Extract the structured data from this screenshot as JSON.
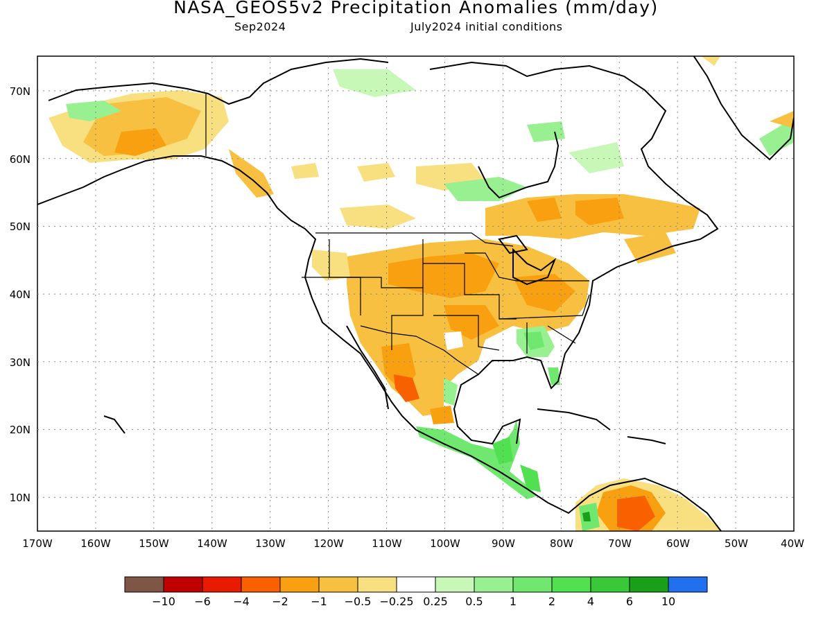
{
  "title": "NASA_GEOS5v2 Precipitation Anomalies (mm/day)",
  "subtitle_left": "Sep2024",
  "subtitle_right": "July2024 initial conditions",
  "lat_labels": [
    "70N",
    "60N",
    "50N",
    "40N",
    "30N",
    "20N",
    "10N"
  ],
  "lon_labels": [
    "170W",
    "160W",
    "150W",
    "140W",
    "130W",
    "120W",
    "110W",
    "100W",
    "90W",
    "80W",
    "70W",
    "60W",
    "50W",
    "40W"
  ],
  "colorbar": {
    "colors": [
      "#7f5545",
      "#c00000",
      "#e81a00",
      "#f86000",
      "#f8a010",
      "#f8c040",
      "#f8e080",
      "#ffffff",
      "#c8f8b8",
      "#98f090",
      "#70e870",
      "#50e050",
      "#38c838",
      "#18a018",
      "#2070f0"
    ],
    "labels": [
      "−10",
      "−6",
      "−4",
      "−2",
      "−1",
      "−0.5",
      "−0.25",
      "0.25",
      "0.5",
      "1",
      "2",
      "4",
      "6",
      "10"
    ]
  }
}
